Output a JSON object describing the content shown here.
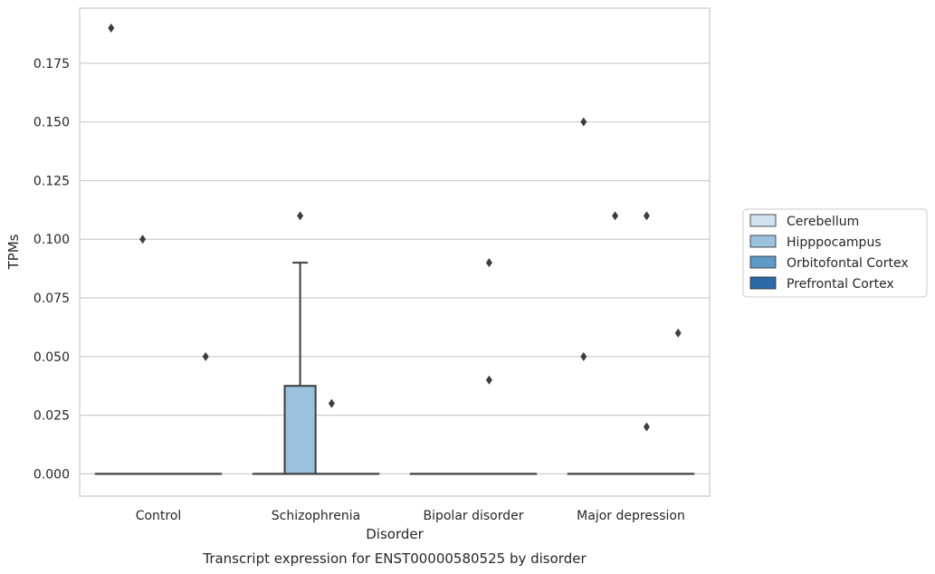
{
  "chart_data": {
    "type": "box",
    "xlabel": "Disorder",
    "ylabel": "TPMs",
    "caption": "Transcript expression for ENST00000580525 by disorder",
    "categories": [
      "Control",
      "Schizophrenia",
      "Bipolar disorder",
      "Major depression"
    ],
    "yticks": [
      "0.000",
      "0.025",
      "0.050",
      "0.075",
      "0.100",
      "0.125",
      "0.150",
      "0.175"
    ],
    "ytick_values": [
      0,
      0.025,
      0.05,
      0.075,
      0.1,
      0.125,
      0.15,
      0.175
    ],
    "ylim": [
      -0.0095,
      0.1985
    ],
    "grid": true,
    "legend_position": "right",
    "series": [
      {
        "name": "Cerebellum",
        "color": "#d1e2f1"
      },
      {
        "name": "Hipppocampus",
        "color": "#9ac2dd"
      },
      {
        "name": "Orbitofontal Cortex",
        "color": "#5c9ac8"
      },
      {
        "name": "Prefrontal Cortex",
        "color": "#2b6aa8"
      }
    ],
    "boxes": [
      {
        "category": "Control",
        "series": "Cerebellum",
        "q1": 0,
        "median": 0,
        "q3": 0,
        "whisker_low": 0,
        "whisker_high": 0,
        "outliers": [
          0.19
        ]
      },
      {
        "category": "Control",
        "series": "Hipppocampus",
        "q1": 0,
        "median": 0,
        "q3": 0,
        "whisker_low": 0,
        "whisker_high": 0,
        "outliers": [
          0.1
        ]
      },
      {
        "category": "Control",
        "series": "Orbitofontal Cortex",
        "q1": 0,
        "median": 0,
        "q3": 0,
        "whisker_low": 0,
        "whisker_high": 0,
        "outliers": []
      },
      {
        "category": "Control",
        "series": "Prefrontal Cortex",
        "q1": 0,
        "median": 0,
        "q3": 0,
        "whisker_low": 0,
        "whisker_high": 0,
        "outliers": [
          0.05
        ]
      },
      {
        "category": "Schizophrenia",
        "series": "Cerebellum",
        "q1": 0,
        "median": 0,
        "q3": 0,
        "whisker_low": 0,
        "whisker_high": 0,
        "outliers": []
      },
      {
        "category": "Schizophrenia",
        "series": "Hipppocampus",
        "q1": 0,
        "median": 0,
        "q3": 0.0375,
        "whisker_low": 0,
        "whisker_high": 0.09,
        "outliers": [
          0.11
        ]
      },
      {
        "category": "Schizophrenia",
        "series": "Orbitofontal Cortex",
        "q1": 0,
        "median": 0,
        "q3": 0,
        "whisker_low": 0,
        "whisker_high": 0,
        "outliers": [
          0.03
        ]
      },
      {
        "category": "Schizophrenia",
        "series": "Prefrontal Cortex",
        "q1": 0,
        "median": 0,
        "q3": 0,
        "whisker_low": 0,
        "whisker_high": 0,
        "outliers": []
      },
      {
        "category": "Bipolar disorder",
        "series": "Cerebellum",
        "q1": 0,
        "median": 0,
        "q3": 0,
        "whisker_low": 0,
        "whisker_high": 0,
        "outliers": []
      },
      {
        "category": "Bipolar disorder",
        "series": "Hipppocampus",
        "q1": 0,
        "median": 0,
        "q3": 0,
        "whisker_low": 0,
        "whisker_high": 0,
        "outliers": []
      },
      {
        "category": "Bipolar disorder",
        "series": "Orbitofontal Cortex",
        "q1": 0,
        "median": 0,
        "q3": 0,
        "whisker_low": 0,
        "whisker_high": 0,
        "outliers": [
          0.09,
          0.04
        ]
      },
      {
        "category": "Bipolar disorder",
        "series": "Prefrontal Cortex",
        "q1": 0,
        "median": 0,
        "q3": 0,
        "whisker_low": 0,
        "whisker_high": 0,
        "outliers": []
      },
      {
        "category": "Major depression",
        "series": "Cerebellum",
        "q1": 0,
        "median": 0,
        "q3": 0,
        "whisker_low": 0,
        "whisker_high": 0,
        "outliers": [
          0.15,
          0.05
        ]
      },
      {
        "category": "Major depression",
        "series": "Hipppocampus",
        "q1": 0,
        "median": 0,
        "q3": 0,
        "whisker_low": 0,
        "whisker_high": 0,
        "outliers": [
          0.11
        ]
      },
      {
        "category": "Major depression",
        "series": "Orbitofontal Cortex",
        "q1": 0,
        "median": 0,
        "q3": 0,
        "whisker_low": 0,
        "whisker_high": 0,
        "outliers": [
          0.11,
          0.02
        ]
      },
      {
        "category": "Major depression",
        "series": "Prefrontal Cortex",
        "q1": 0,
        "median": 0,
        "q3": 0,
        "whisker_low": 0,
        "whisker_high": 0,
        "outliers": [
          0.06
        ]
      }
    ]
  },
  "colors": {
    "grid": "#cccccc",
    "frame": "#cccccc",
    "box_line": "#3d3d3d",
    "text": "#262626"
  }
}
